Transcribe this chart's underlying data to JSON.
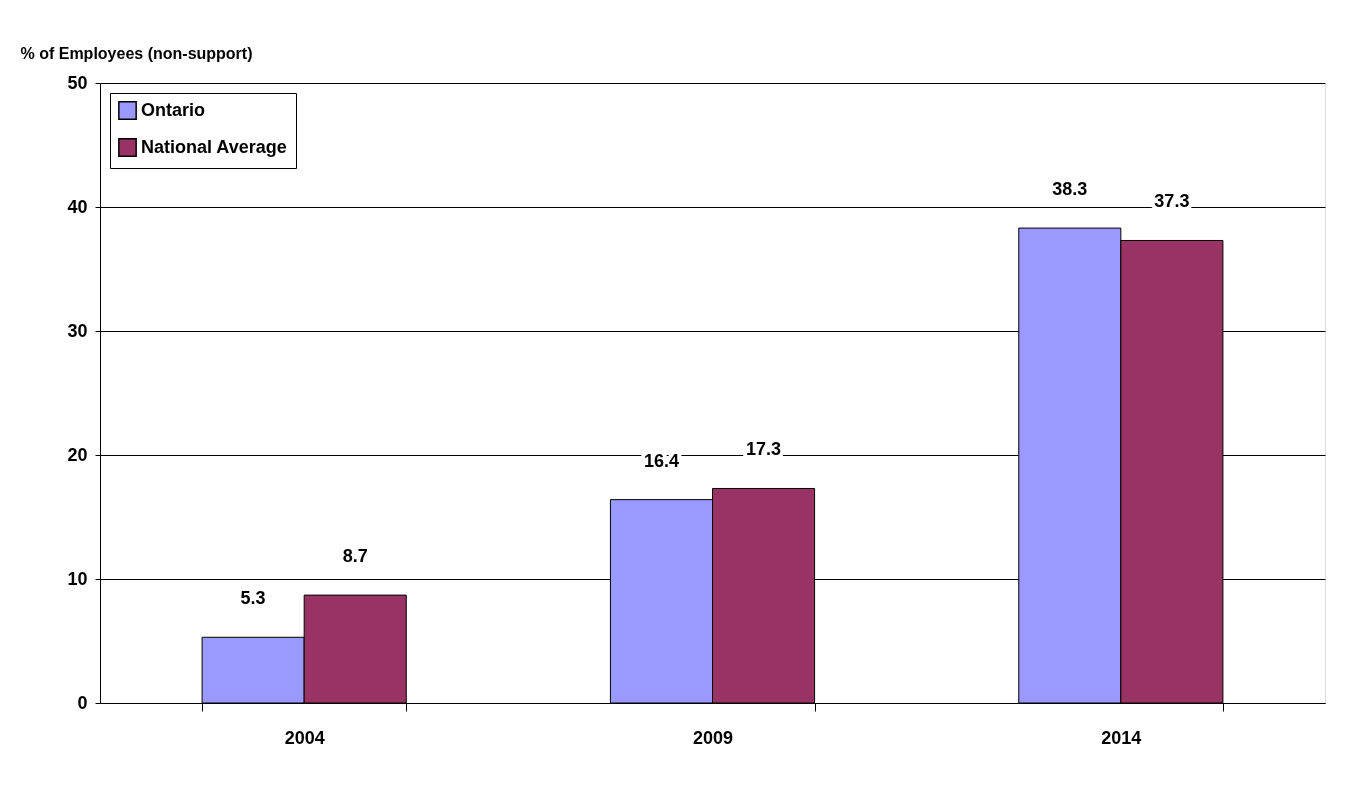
{
  "chart_data": {
    "type": "bar",
    "ylabel": "% of Employees (non-support)",
    "categories": [
      "2004",
      "2009",
      "2014"
    ],
    "series": [
      {
        "name": "Ontario",
        "color": "#9999ff",
        "values": [
          5.3,
          16.4,
          38.3
        ]
      },
      {
        "name": "National Average",
        "color": "#993366",
        "values": [
          8.7,
          17.3,
          37.3
        ]
      }
    ],
    "ylim": [
      0,
      50
    ],
    "yticks": [
      0,
      10,
      20,
      30,
      40,
      50
    ],
    "grid": "y",
    "legend": "top left",
    "data_labels": true
  }
}
